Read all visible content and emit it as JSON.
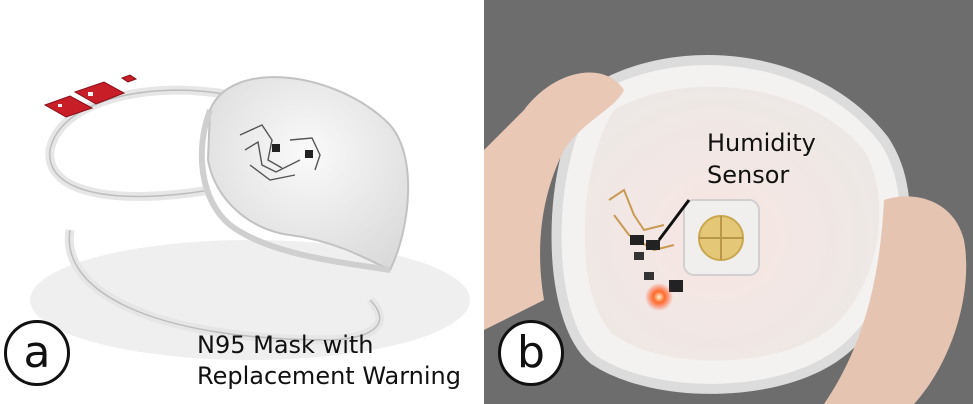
{
  "panel_a": {
    "label": "a",
    "caption_line1": "N95 Mask with",
    "caption_line2": "Replacement Warning"
  },
  "panel_b": {
    "label": "b",
    "callout_line1": "Humidity",
    "callout_line2": "Sensor"
  },
  "colors": {
    "pcb_red": "#c81e28",
    "led_orange": "#ff6a2a",
    "valve_yellow": "#e4c878"
  }
}
